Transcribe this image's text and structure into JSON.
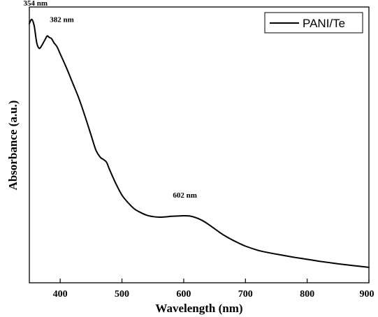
{
  "chart_data": {
    "type": "line",
    "xlabel": "Wavelength (nm)",
    "ylabel": "Absorbance (a.u.)",
    "xlim": [
      350,
      900
    ],
    "ylim": [
      0,
      1
    ],
    "x_ticks": [
      "400",
      "500",
      "600",
      "700",
      "800",
      "900"
    ],
    "y_ticks_shown": false,
    "grid": false,
    "legend_position": "top-right",
    "series": [
      {
        "name": "PANI/Te",
        "color": "#000000",
        "x": [
          350,
          354,
          358,
          362,
          366,
          370,
          375,
          379,
          382,
          386,
          390,
          395,
          400,
          410,
          420,
          430,
          440,
          450,
          458,
          465,
          470,
          475,
          480,
          490,
          500,
          510,
          520,
          530,
          540,
          550,
          560,
          570,
          580,
          590,
          600,
          610,
          620,
          630,
          640,
          650,
          660,
          670,
          680,
          690,
          700,
          720,
          740,
          760,
          780,
          800,
          820,
          840,
          860,
          880,
          900
        ],
        "y": [
          0.94,
          0.955,
          0.93,
          0.87,
          0.85,
          0.86,
          0.88,
          0.895,
          0.89,
          0.885,
          0.87,
          0.855,
          0.83,
          0.78,
          0.725,
          0.67,
          0.605,
          0.535,
          0.48,
          0.455,
          0.447,
          0.437,
          0.41,
          0.36,
          0.318,
          0.29,
          0.268,
          0.255,
          0.245,
          0.24,
          0.238,
          0.239,
          0.241,
          0.242,
          0.243,
          0.242,
          0.236,
          0.226,
          0.212,
          0.196,
          0.18,
          0.166,
          0.154,
          0.143,
          0.133,
          0.118,
          0.108,
          0.1,
          0.092,
          0.085,
          0.078,
          0.072,
          0.066,
          0.061,
          0.056
        ]
      }
    ],
    "annotations": [
      {
        "text": "354 nm",
        "x": 354,
        "y": 0.955,
        "anchor": "left"
      },
      {
        "text": "382 nm",
        "x": 382,
        "y": 0.895,
        "anchor": "right"
      },
      {
        "text": "602 nm",
        "x": 602,
        "y": 0.243,
        "anchor": "center"
      }
    ]
  }
}
